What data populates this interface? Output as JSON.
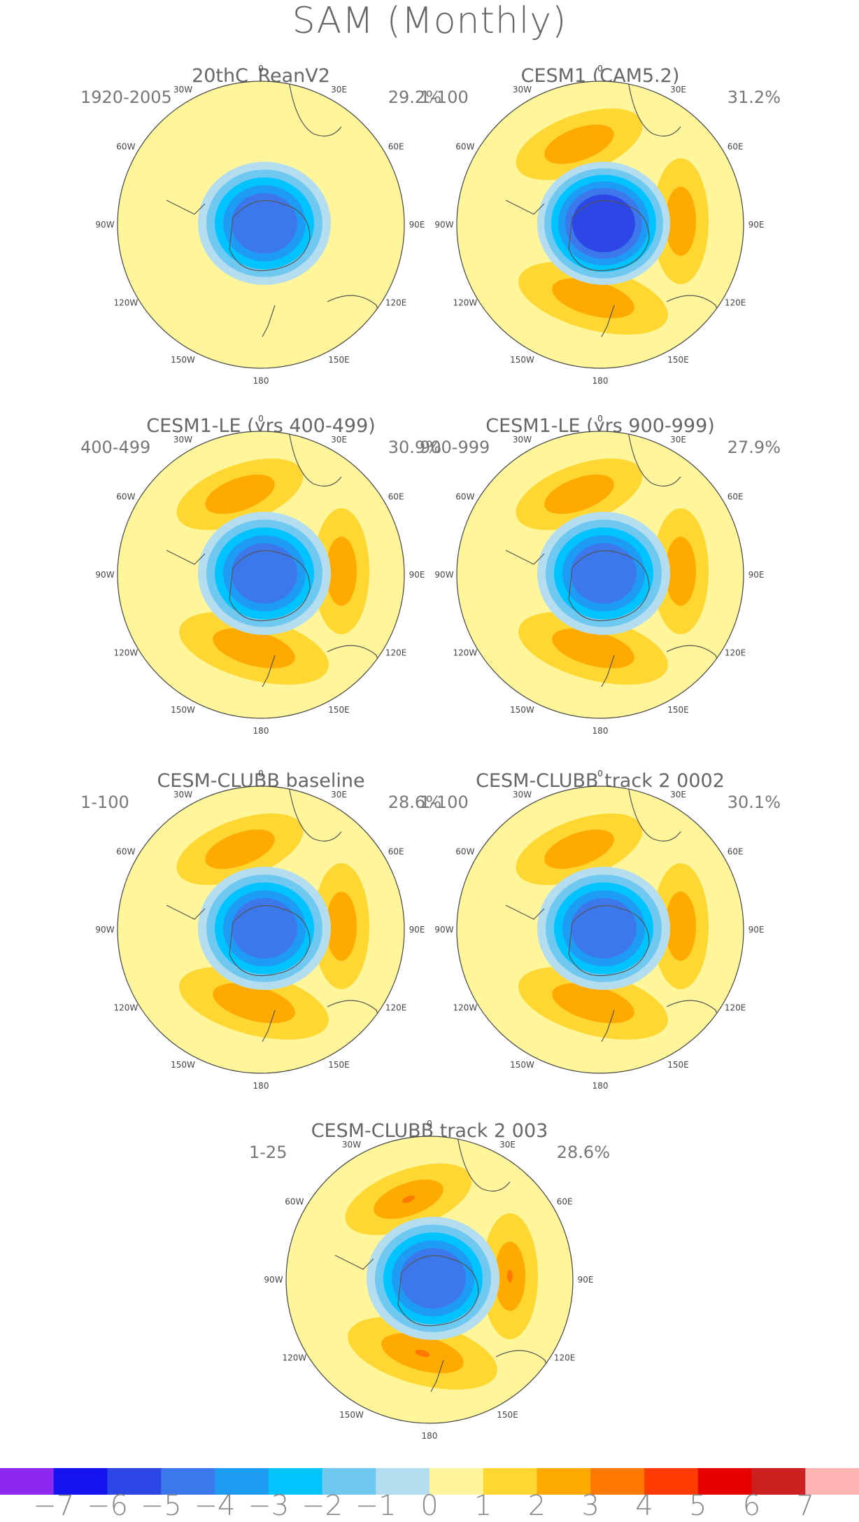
{
  "figure_title": "SAM (Monthly)",
  "lon_labels": {
    "top": "0",
    "bottom": "180",
    "left": "90W",
    "right": "90E",
    "upper_left_1": "30W",
    "upper_left_2": "60W",
    "upper_right_1": "30E",
    "upper_right_2": "60E",
    "lower_left_1": "120W",
    "lower_left_2": "150W",
    "lower_right_1": "120E",
    "lower_right_2": "150E"
  },
  "panels": [
    {
      "title": "20thC_ReanV2",
      "years": "1920-2005",
      "pct": "29.2%",
      "center_min": -5,
      "ring_min": 0,
      "ring_max": 0
    },
    {
      "title": "CESM1 (CAM5.2)",
      "years": "1-100",
      "pct": "31.2%",
      "center_min": -6,
      "ring_min": 1,
      "ring_max": 2
    },
    {
      "title": "CESM1-LE (yrs 400-499)",
      "years": "400-499",
      "pct": "30.9%",
      "center_min": -5,
      "ring_min": 1,
      "ring_max": 2
    },
    {
      "title": "CESM1-LE (yrs 900-999)",
      "years": "900-999",
      "pct": "27.9%",
      "center_min": -5,
      "ring_min": 1,
      "ring_max": 2
    },
    {
      "title": "CESM-CLUBB baseline",
      "years": "1-100",
      "pct": "28.6%",
      "center_min": -5,
      "ring_min": 1,
      "ring_max": 2
    },
    {
      "title": "CESM-CLUBB track 2 0002",
      "years": "1-100",
      "pct": "30.1%",
      "center_min": -5,
      "ring_min": 1,
      "ring_max": 2
    },
    {
      "title": "CESM-CLUBB track 2 003",
      "years": "1-25",
      "pct": "28.6%",
      "center_min": -5,
      "ring_min": 1,
      "ring_max": 3
    }
  ],
  "colorbar": {
    "labels": [
      "−7",
      "−6",
      "−5",
      "−4",
      "−3",
      "−2",
      "−1",
      "0",
      "1",
      "2",
      "3",
      "4",
      "5",
      "6",
      "7"
    ],
    "colors": [
      "#8c28f0",
      "#1414f0",
      "#2d46e6",
      "#3c78ec",
      "#1e9bf5",
      "#00c3ff",
      "#6ec8f0",
      "#b4def0",
      "#fff59b",
      "#ffd732",
      "#ffaa00",
      "#ff7800",
      "#ff3c00",
      "#e60000",
      "#cd2020",
      "#ffb4b4"
    ]
  }
}
